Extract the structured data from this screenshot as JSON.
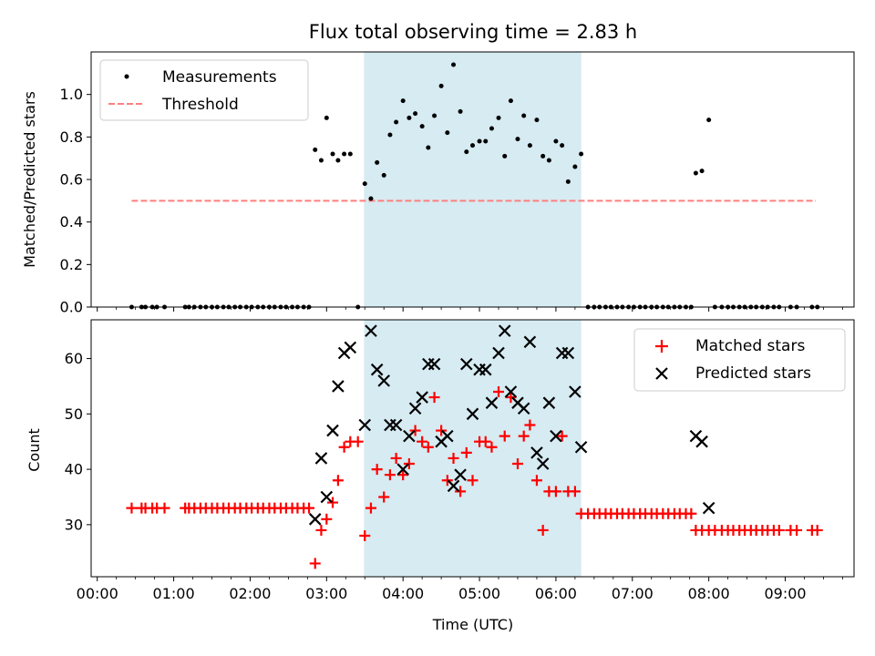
{
  "title": "Flux total observing time = 2.83 h",
  "xlabel": "Time (UTC)",
  "x_ticks": [
    "00:00",
    "01:00",
    "02:00",
    "03:00",
    "04:00",
    "05:00",
    "06:00",
    "07:00",
    "08:00",
    "09:00"
  ],
  "highlight": {
    "start_h": 3.49,
    "end_h": 6.33,
    "color": "#add8e6"
  },
  "colors": {
    "measurements": "#000000",
    "threshold": "#ff7f7f",
    "matched": "#ff0000",
    "predicted": "#000000"
  },
  "chart_data": [
    {
      "type": "scatter",
      "ylabel": "Matched/Predicted stars",
      "ylim": [
        0,
        1.2
      ],
      "xlim_h": [
        -0.08,
        9.9
      ],
      "y_ticks": [
        "0.0",
        "0.2",
        "0.4",
        "0.6",
        "0.8",
        "1.0"
      ],
      "legend": {
        "position": "top-left",
        "entries": [
          "Measurements",
          "Threshold"
        ]
      },
      "threshold": {
        "name": "Threshold",
        "value": 0.5,
        "x_range_h": [
          0.45,
          9.4
        ]
      },
      "series": [
        {
          "name": "Measurements",
          "points": [
            [
              0.45,
              0
            ],
            [
              0.58,
              0
            ],
            [
              0.63,
              0
            ],
            [
              0.72,
              0
            ],
            [
              0.78,
              0
            ],
            [
              0.88,
              0
            ],
            [
              1.15,
              0
            ],
            [
              1.2,
              0
            ],
            [
              1.27,
              0
            ],
            [
              1.35,
              0
            ],
            [
              1.42,
              0
            ],
            [
              1.5,
              0
            ],
            [
              1.57,
              0
            ],
            [
              1.65,
              0
            ],
            [
              1.72,
              0
            ],
            [
              1.8,
              0
            ],
            [
              1.87,
              0
            ],
            [
              1.95,
              0
            ],
            [
              2.02,
              0
            ],
            [
              2.1,
              0
            ],
            [
              2.17,
              0
            ],
            [
              2.25,
              0
            ],
            [
              2.32,
              0
            ],
            [
              2.4,
              0
            ],
            [
              2.47,
              0
            ],
            [
              2.55,
              0
            ],
            [
              2.62,
              0
            ],
            [
              2.7,
              0
            ],
            [
              2.77,
              0
            ],
            [
              2.85,
              0.74
            ],
            [
              2.93,
              0.69
            ],
            [
              3.0,
              0.89
            ],
            [
              3.08,
              0.72
            ],
            [
              3.15,
              0.69
            ],
            [
              3.23,
              0.72
            ],
            [
              3.31,
              0.72
            ],
            [
              3.41,
              0
            ],
            [
              3.5,
              0.58
            ],
            [
              3.58,
              0.51
            ],
            [
              3.66,
              0.68
            ],
            [
              3.75,
              0.62
            ],
            [
              3.83,
              0.81
            ],
            [
              3.91,
              0.87
            ],
            [
              4.0,
              0.97
            ],
            [
              4.08,
              0.89
            ],
            [
              4.16,
              0.91
            ],
            [
              4.25,
              0.85
            ],
            [
              4.33,
              0.75
            ],
            [
              4.41,
              0.9
            ],
            [
              4.5,
              1.04
            ],
            [
              4.58,
              0.82
            ],
            [
              4.66,
              1.14
            ],
            [
              4.75,
              0.92
            ],
            [
              4.83,
              0.73
            ],
            [
              4.91,
              0.76
            ],
            [
              5.0,
              0.78
            ],
            [
              5.08,
              0.78
            ],
            [
              5.16,
              0.84
            ],
            [
              5.25,
              0.89
            ],
            [
              5.33,
              0.71
            ],
            [
              5.41,
              0.97
            ],
            [
              5.5,
              0.79
            ],
            [
              5.58,
              0.9
            ],
            [
              5.66,
              0.76
            ],
            [
              5.75,
              0.88
            ],
            [
              5.83,
              0.71
            ],
            [
              5.91,
              0.69
            ],
            [
              6.0,
              0.78
            ],
            [
              6.08,
              0.76
            ],
            [
              6.16,
              0.59
            ],
            [
              6.25,
              0.66
            ],
            [
              6.33,
              0.72
            ],
            [
              6.42,
              0
            ],
            [
              6.5,
              0
            ],
            [
              6.57,
              0
            ],
            [
              6.65,
              0
            ],
            [
              6.72,
              0
            ],
            [
              6.8,
              0
            ],
            [
              6.87,
              0
            ],
            [
              6.95,
              0
            ],
            [
              7.02,
              0
            ],
            [
              7.1,
              0
            ],
            [
              7.17,
              0
            ],
            [
              7.25,
              0
            ],
            [
              7.32,
              0
            ],
            [
              7.4,
              0
            ],
            [
              7.47,
              0
            ],
            [
              7.55,
              0
            ],
            [
              7.62,
              0
            ],
            [
              7.7,
              0
            ],
            [
              7.77,
              0
            ],
            [
              7.83,
              0.63
            ],
            [
              7.91,
              0.64
            ],
            [
              8.0,
              0.88
            ],
            [
              8.08,
              0
            ],
            [
              8.17,
              0
            ],
            [
              8.25,
              0
            ],
            [
              8.32,
              0
            ],
            [
              8.4,
              0
            ],
            [
              8.47,
              0
            ],
            [
              8.55,
              0
            ],
            [
              8.62,
              0
            ],
            [
              8.7,
              0
            ],
            [
              8.77,
              0
            ],
            [
              8.85,
              0
            ],
            [
              8.92,
              0
            ],
            [
              9.07,
              0
            ],
            [
              9.15,
              0
            ],
            [
              9.35,
              0
            ],
            [
              9.42,
              0
            ]
          ]
        }
      ]
    },
    {
      "type": "scatter",
      "ylabel": "Count",
      "ylim": [
        20.6,
        67.0
      ],
      "xlim_h": [
        -0.08,
        9.9
      ],
      "y_ticks": [
        "30",
        "40",
        "50",
        "60"
      ],
      "legend": {
        "position": "top-right",
        "entries": [
          "Matched stars",
          "Predicted stars"
        ]
      },
      "series": [
        {
          "name": "Matched stars",
          "points": [
            [
              0.45,
              33
            ],
            [
              0.58,
              33
            ],
            [
              0.63,
              33
            ],
            [
              0.72,
              33
            ],
            [
              0.78,
              33
            ],
            [
              0.88,
              33
            ],
            [
              1.15,
              33
            ],
            [
              1.2,
              33
            ],
            [
              1.27,
              33
            ],
            [
              1.35,
              33
            ],
            [
              1.42,
              33
            ],
            [
              1.5,
              33
            ],
            [
              1.57,
              33
            ],
            [
              1.65,
              33
            ],
            [
              1.72,
              33
            ],
            [
              1.8,
              33
            ],
            [
              1.87,
              33
            ],
            [
              1.95,
              33
            ],
            [
              2.02,
              33
            ],
            [
              2.1,
              33
            ],
            [
              2.17,
              33
            ],
            [
              2.25,
              33
            ],
            [
              2.32,
              33
            ],
            [
              2.4,
              33
            ],
            [
              2.47,
              33
            ],
            [
              2.55,
              33
            ],
            [
              2.62,
              33
            ],
            [
              2.7,
              33
            ],
            [
              2.77,
              33
            ],
            [
              2.85,
              23
            ],
            [
              2.93,
              29
            ],
            [
              3.0,
              31
            ],
            [
              3.08,
              34
            ],
            [
              3.15,
              38
            ],
            [
              3.23,
              44
            ],
            [
              3.31,
              45
            ],
            [
              3.41,
              45
            ],
            [
              3.5,
              28
            ],
            [
              3.58,
              33
            ],
            [
              3.66,
              40
            ],
            [
              3.75,
              35
            ],
            [
              3.83,
              39
            ],
            [
              3.91,
              42
            ],
            [
              4.0,
              39
            ],
            [
              4.08,
              41
            ],
            [
              4.16,
              47
            ],
            [
              4.25,
              45
            ],
            [
              4.33,
              44
            ],
            [
              4.41,
              53
            ],
            [
              4.5,
              47
            ],
            [
              4.58,
              38
            ],
            [
              4.66,
              42
            ],
            [
              4.75,
              36
            ],
            [
              4.83,
              43
            ],
            [
              4.91,
              38
            ],
            [
              5.0,
              45
            ],
            [
              5.08,
              45
            ],
            [
              5.16,
              44
            ],
            [
              5.25,
              54
            ],
            [
              5.33,
              46
            ],
            [
              5.41,
              53
            ],
            [
              5.5,
              41
            ],
            [
              5.58,
              46
            ],
            [
              5.66,
              48
            ],
            [
              5.75,
              38
            ],
            [
              5.83,
              29
            ],
            [
              5.91,
              36
            ],
            [
              6.0,
              36
            ],
            [
              6.08,
              46
            ],
            [
              6.16,
              36
            ],
            [
              6.25,
              36
            ],
            [
              6.33,
              32
            ],
            [
              6.42,
              32
            ],
            [
              6.5,
              32
            ],
            [
              6.57,
              32
            ],
            [
              6.65,
              32
            ],
            [
              6.72,
              32
            ],
            [
              6.8,
              32
            ],
            [
              6.87,
              32
            ],
            [
              6.95,
              32
            ],
            [
              7.02,
              32
            ],
            [
              7.1,
              32
            ],
            [
              7.17,
              32
            ],
            [
              7.25,
              32
            ],
            [
              7.32,
              32
            ],
            [
              7.4,
              32
            ],
            [
              7.47,
              32
            ],
            [
              7.55,
              32
            ],
            [
              7.62,
              32
            ],
            [
              7.7,
              32
            ],
            [
              7.77,
              32
            ],
            [
              7.83,
              29
            ],
            [
              7.91,
              29
            ],
            [
              8.0,
              29
            ],
            [
              8.08,
              29
            ],
            [
              8.17,
              29
            ],
            [
              8.25,
              29
            ],
            [
              8.32,
              29
            ],
            [
              8.4,
              29
            ],
            [
              8.47,
              29
            ],
            [
              8.55,
              29
            ],
            [
              8.62,
              29
            ],
            [
              8.7,
              29
            ],
            [
              8.77,
              29
            ],
            [
              8.85,
              29
            ],
            [
              8.92,
              29
            ],
            [
              9.07,
              29
            ],
            [
              9.15,
              29
            ],
            [
              9.35,
              29
            ],
            [
              9.42,
              29
            ]
          ]
        },
        {
          "name": "Predicted stars",
          "points": [
            [
              2.85,
              31
            ],
            [
              2.93,
              42
            ],
            [
              3.0,
              35
            ],
            [
              3.08,
              47
            ],
            [
              3.15,
              55
            ],
            [
              3.23,
              61
            ],
            [
              3.31,
              62
            ],
            [
              3.5,
              48
            ],
            [
              3.58,
              65
            ],
            [
              3.66,
              58
            ],
            [
              3.75,
              56
            ],
            [
              3.83,
              48
            ],
            [
              3.91,
              48
            ],
            [
              4.0,
              40
            ],
            [
              4.08,
              46
            ],
            [
              4.16,
              51
            ],
            [
              4.25,
              53
            ],
            [
              4.33,
              59
            ],
            [
              4.41,
              59
            ],
            [
              4.5,
              45
            ],
            [
              4.58,
              46
            ],
            [
              4.66,
              37
            ],
            [
              4.75,
              39
            ],
            [
              4.83,
              59
            ],
            [
              4.91,
              50
            ],
            [
              5.0,
              58
            ],
            [
              5.08,
              58
            ],
            [
              5.16,
              52
            ],
            [
              5.25,
              61
            ],
            [
              5.33,
              65
            ],
            [
              5.41,
              54
            ],
            [
              5.5,
              52
            ],
            [
              5.58,
              51
            ],
            [
              5.66,
              63
            ],
            [
              5.75,
              43
            ],
            [
              5.83,
              41
            ],
            [
              5.91,
              52
            ],
            [
              6.0,
              46
            ],
            [
              6.08,
              61
            ],
            [
              6.16,
              61
            ],
            [
              6.25,
              54
            ],
            [
              6.33,
              44
            ],
            [
              7.83,
              46
            ],
            [
              7.91,
              45
            ],
            [
              8.0,
              33
            ]
          ]
        }
      ]
    }
  ]
}
